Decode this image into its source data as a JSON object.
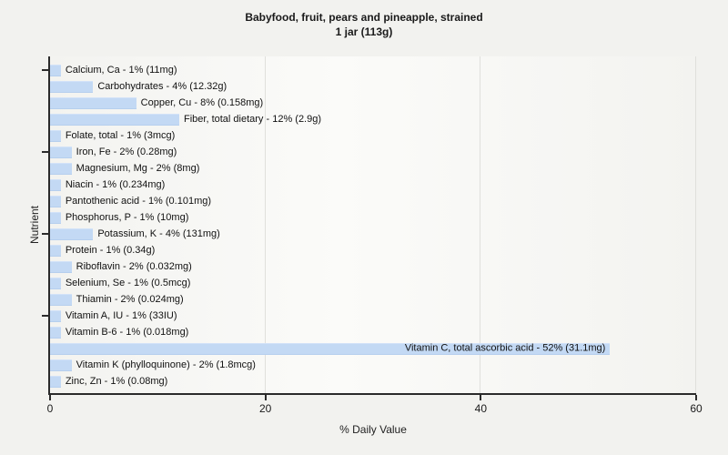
{
  "chart_data": {
    "type": "bar",
    "orientation": "horizontal",
    "title": "Babyfood, fruit, pears and pineapple, strained",
    "subtitle": "1 jar (113g)",
    "xlabel": "% Daily Value",
    "ylabel": "Nutrient",
    "xlim": [
      0,
      60
    ],
    "xticks": [
      0,
      20,
      40,
      60
    ],
    "grid": "vertical-lines-at-xticks",
    "legend": "none",
    "bar_color": "#c3d9f4",
    "y_axis_tick_row_indices": [
      0,
      5,
      10,
      15
    ],
    "items": [
      {
        "label": "Calcium, Ca - 1% (11mg)",
        "name": "Calcium, Ca",
        "percent": 1,
        "amount": "11mg"
      },
      {
        "label": "Carbohydrates - 4% (12.32g)",
        "name": "Carbohydrates",
        "percent": 4,
        "amount": "12.32g"
      },
      {
        "label": "Copper, Cu - 8% (0.158mg)",
        "name": "Copper, Cu",
        "percent": 8,
        "amount": "0.158mg"
      },
      {
        "label": "Fiber, total dietary - 12% (2.9g)",
        "name": "Fiber, total dietary",
        "percent": 12,
        "amount": "2.9g"
      },
      {
        "label": "Folate, total - 1% (3mcg)",
        "name": "Folate, total",
        "percent": 1,
        "amount": "3mcg"
      },
      {
        "label": "Iron, Fe - 2% (0.28mg)",
        "name": "Iron, Fe",
        "percent": 2,
        "amount": "0.28mg"
      },
      {
        "label": "Magnesium, Mg - 2% (8mg)",
        "name": "Magnesium, Mg",
        "percent": 2,
        "amount": "8mg"
      },
      {
        "label": "Niacin - 1% (0.234mg)",
        "name": "Niacin",
        "percent": 1,
        "amount": "0.234mg"
      },
      {
        "label": "Pantothenic acid - 1% (0.101mg)",
        "name": "Pantothenic acid",
        "percent": 1,
        "amount": "0.101mg"
      },
      {
        "label": "Phosphorus, P - 1% (10mg)",
        "name": "Phosphorus, P",
        "percent": 1,
        "amount": "10mg"
      },
      {
        "label": "Potassium, K - 4% (131mg)",
        "name": "Potassium, K",
        "percent": 4,
        "amount": "131mg"
      },
      {
        "label": "Protein - 1% (0.34g)",
        "name": "Protein",
        "percent": 1,
        "amount": "0.34g"
      },
      {
        "label": "Riboflavin - 2% (0.032mg)",
        "name": "Riboflavin",
        "percent": 2,
        "amount": "0.032mg"
      },
      {
        "label": "Selenium, Se - 1% (0.5mcg)",
        "name": "Selenium, Se",
        "percent": 1,
        "amount": "0.5mcg"
      },
      {
        "label": "Thiamin - 2% (0.024mg)",
        "name": "Thiamin",
        "percent": 2,
        "amount": "0.024mg"
      },
      {
        "label": "Vitamin A, IU - 1% (33IU)",
        "name": "Vitamin A, IU",
        "percent": 1,
        "amount": "33IU"
      },
      {
        "label": "Vitamin B-6 - 1% (0.018mg)",
        "name": "Vitamin B-6",
        "percent": 1,
        "amount": "0.018mg"
      },
      {
        "label": "Vitamin C, total ascorbic acid - 52% (31.1mg)",
        "name": "Vitamin C, total ascorbic acid",
        "percent": 52,
        "amount": "31.1mg"
      },
      {
        "label": "Vitamin K (phylloquinone) - 2% (1.8mcg)",
        "name": "Vitamin K (phylloquinone)",
        "percent": 2,
        "amount": "1.8mcg"
      },
      {
        "label": "Zinc, Zn - 1% (0.08mg)",
        "name": "Zinc, Zn",
        "percent": 1,
        "amount": "0.08mg"
      }
    ]
  }
}
